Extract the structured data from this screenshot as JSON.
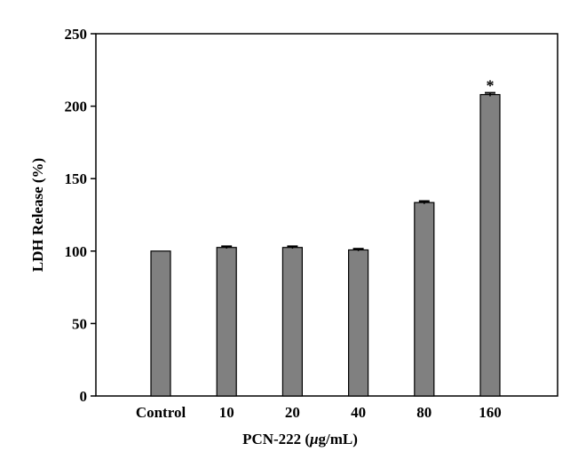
{
  "chart_data": {
    "type": "bar",
    "title": "",
    "xlabel": "PCN-222 (",
    "xlabel_unit_italic": "μ",
    "xlabel_unit_rest": "g/mL)",
    "ylabel": "LDH Release (%)",
    "ylim": [
      0,
      250
    ],
    "yticks": [
      0,
      50,
      100,
      150,
      200,
      250
    ],
    "categories": [
      "Control",
      "10",
      "20",
      "40",
      "80",
      "160"
    ],
    "values": [
      100,
      102.5,
      102.5,
      100.8,
      133.5,
      208
    ],
    "errors": [
      0,
      0.8,
      0.8,
      0.8,
      1.0,
      1.2
    ],
    "annotations": [
      {
        "category": "160",
        "text": "*"
      }
    ],
    "grid": false,
    "legend": "none",
    "bar_color": "#808080",
    "bar_edge_color": "#000000"
  }
}
